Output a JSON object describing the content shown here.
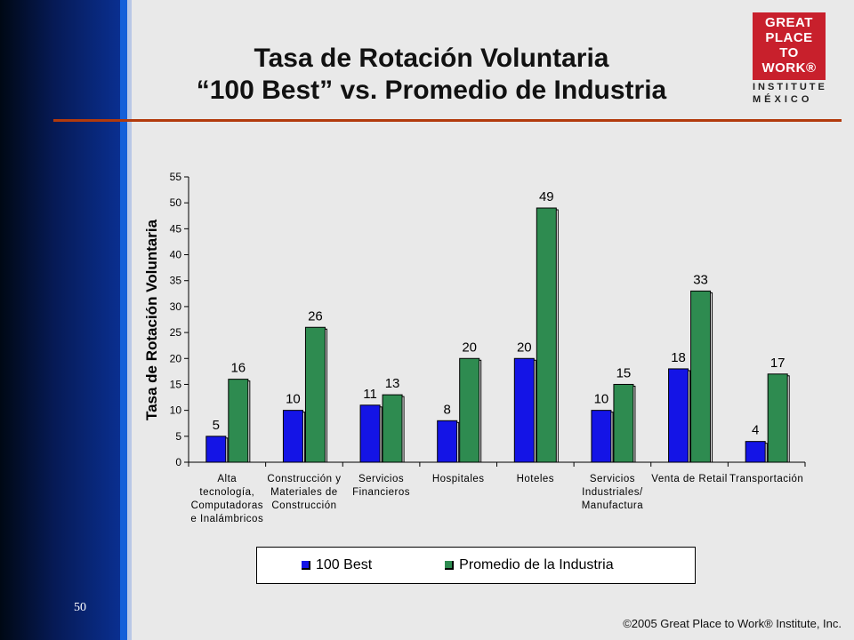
{
  "slide": {
    "number": "50",
    "title_line1": "Tasa de Rotación Voluntaria",
    "title_line2": "“100 Best” vs. Promedio de Industria",
    "copyright": "©2005 Great Place to Work® Institute, Inc."
  },
  "logo": {
    "line1": "GREAT",
    "line2": "PLACE",
    "line3": "TO",
    "line4": "WORK®",
    "line5": "INSTITUTE",
    "line6": "MÉXICO"
  },
  "colors": {
    "series1": "#1414e6",
    "series2": "#2e8b50",
    "accent_rule": "#b23a0c",
    "logo_red": "#c8202c"
  },
  "chart_data": {
    "type": "bar",
    "categories": [
      [
        "Alta",
        "tecnología,",
        "Computadoras",
        "e Inalámbricos"
      ],
      [
        "Construcción y",
        "Materiales de",
        "Construcción"
      ],
      [
        "Servicios",
        "Financieros"
      ],
      [
        "Hospitales"
      ],
      [
        "Hoteles"
      ],
      [
        "Servicios",
        "Industriales/",
        "Manufactura"
      ],
      [
        "Venta de Retail"
      ],
      [
        "Transportación"
      ]
    ],
    "series": [
      {
        "name": "100 Best",
        "values": [
          5,
          10,
          11,
          8,
          20,
          10,
          18,
          4
        ]
      },
      {
        "name": "Promedio de la Industria",
        "values": [
          16,
          26,
          13,
          20,
          49,
          15,
          33,
          17
        ]
      }
    ],
    "title": "",
    "xlabel": "",
    "ylabel": "Tasa de Rotación Voluntaria",
    "ylim": [
      0,
      55
    ],
    "yticks": [
      0,
      5,
      10,
      15,
      20,
      25,
      30,
      35,
      40,
      45,
      50,
      55
    ],
    "grid": false,
    "legend_position": "bottom"
  }
}
